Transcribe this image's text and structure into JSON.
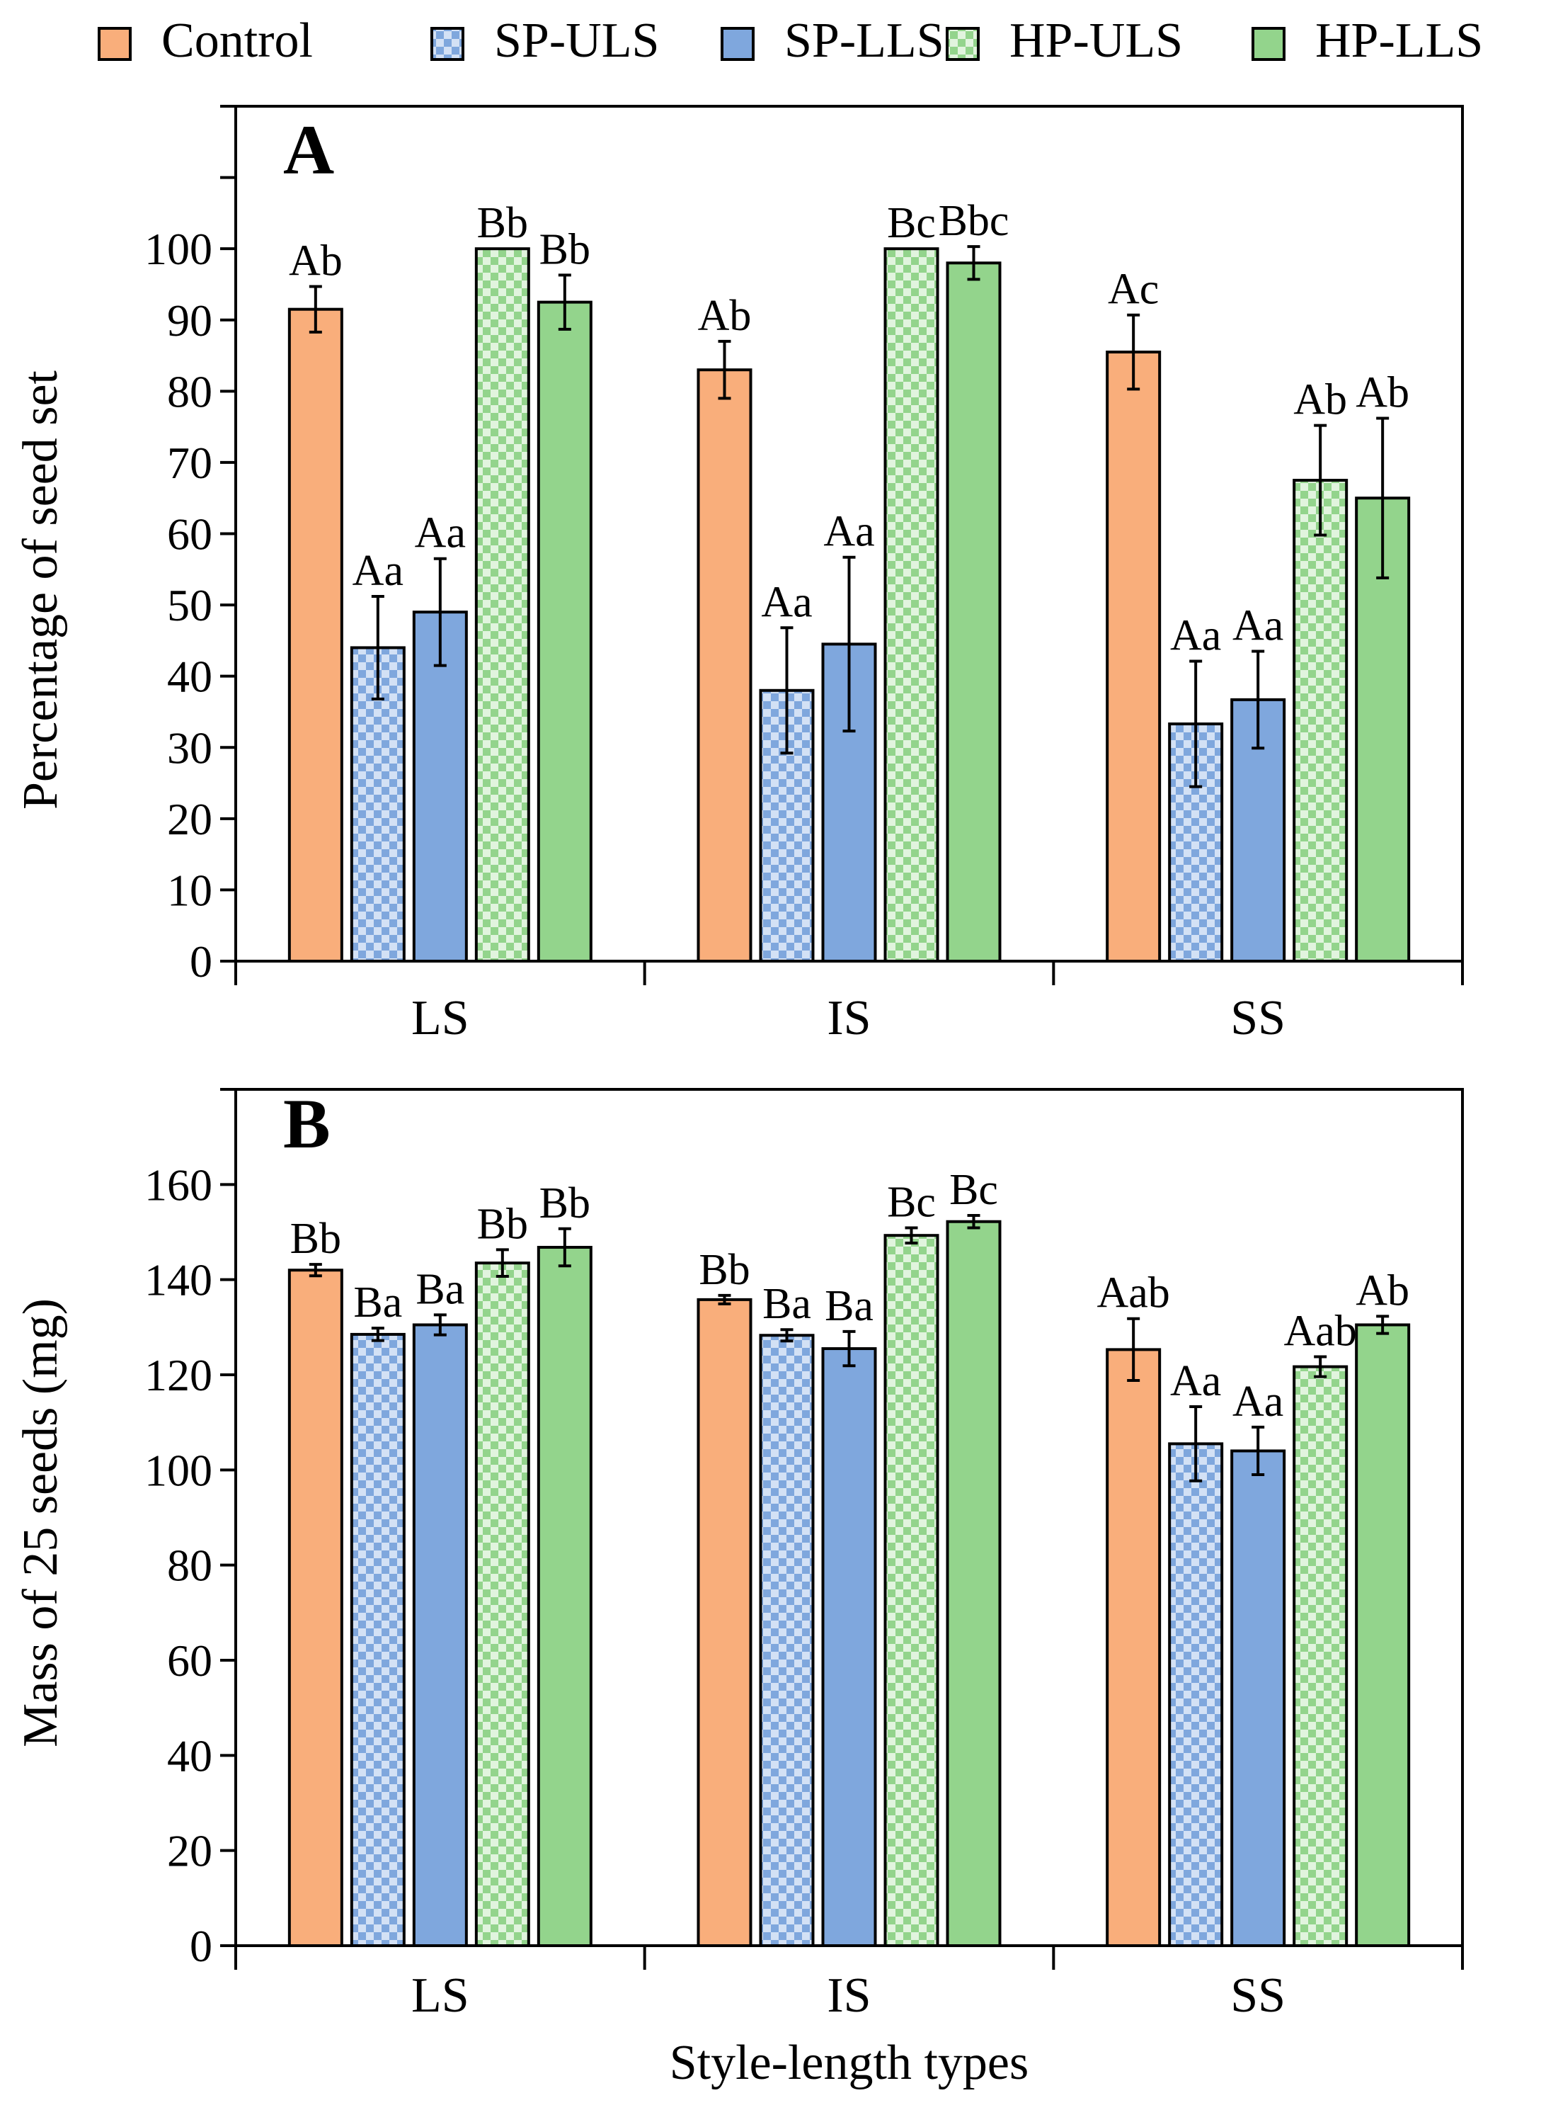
{
  "colors": {
    "control": "#f9ae7b",
    "sp": "#7fa7dd",
    "sp_light": "#d3e1f5",
    "hp": "#93d48c",
    "hp_light": "#e1f4de",
    "axis": "#000000"
  },
  "legend": [
    {
      "name": "Control",
      "color": "control",
      "pattern": "solid"
    },
    {
      "name": "SP-ULS",
      "color": "sp",
      "pattern": "checker"
    },
    {
      "name": "SP-LLS",
      "color": "sp",
      "pattern": "solid"
    },
    {
      "name": "HP-ULS",
      "color": "hp",
      "pattern": "checker"
    },
    {
      "name": "HP-LLS",
      "color": "hp",
      "pattern": "solid"
    }
  ],
  "chart_data": [
    {
      "type": "bar",
      "panel_label": "A",
      "title": "",
      "xlabel": "",
      "ylabel": "Percentage of seed set",
      "ylim": [
        0,
        120
      ],
      "yticks": [
        0,
        10,
        20,
        30,
        40,
        50,
        60,
        70,
        80,
        90,
        100
      ],
      "ytick_labels": [
        "0",
        "10",
        "20",
        "30",
        "40",
        "50",
        "60",
        "70",
        "80",
        "90",
        "100"
      ],
      "minor_ticks": [
        110,
        120
      ],
      "categories": [
        "LS",
        "IS",
        "SS"
      ],
      "series": [
        {
          "name": "Control",
          "values": [
            91.5,
            83,
            85.5
          ],
          "errors": [
            3.2,
            4,
            5.2
          ],
          "labels": [
            "Ab",
            "Ab",
            "Ac"
          ]
        },
        {
          "name": "SP-ULS",
          "values": [
            44,
            38,
            33.3
          ],
          "errors": [
            7.2,
            8.8,
            8.8
          ],
          "labels": [
            "Aa",
            "Aa",
            "Aa"
          ]
        },
        {
          "name": "SP-LLS",
          "values": [
            49,
            44.5,
            36.7
          ],
          "errors": [
            7.5,
            12.2,
            6.8
          ],
          "labels": [
            "Aa",
            "Aa",
            "Aa"
          ]
        },
        {
          "name": "HP-ULS",
          "values": [
            100,
            100,
            67.5
          ],
          "errors": [
            0,
            0,
            7.7
          ],
          "labels": [
            "Bb",
            "Bc",
            "Ab"
          ]
        },
        {
          "name": "HP-LLS",
          "values": [
            92.5,
            98,
            65
          ],
          "errors": [
            3.8,
            2.3,
            11.2
          ],
          "labels": [
            "Bb",
            "Bbc",
            "Ab"
          ]
        }
      ]
    },
    {
      "type": "bar",
      "panel_label": "B",
      "title": "",
      "xlabel": "Style-length types",
      "ylabel": "Mass of 25 seeds (mg)",
      "ylim": [
        0,
        180
      ],
      "yticks": [
        0,
        20,
        40,
        60,
        80,
        100,
        120,
        140,
        160
      ],
      "ytick_labels": [
        "0",
        "20",
        "40",
        "60",
        "80",
        "100",
        "120",
        "140",
        "160"
      ],
      "minor_ticks": [
        180
      ],
      "categories": [
        "LS",
        "IS",
        "SS"
      ],
      "series": [
        {
          "name": "Control",
          "values": [
            142,
            135.8,
            125.3
          ],
          "errors": [
            1.2,
            0.9,
            6.5
          ],
          "labels": [
            "Bb",
            "Bb",
            "Aab"
          ]
        },
        {
          "name": "SP-ULS",
          "values": [
            128.5,
            128.3,
            105.5
          ],
          "errors": [
            1.3,
            1.2,
            7.8
          ],
          "labels": [
            "Ba",
            "Ba",
            "Aa"
          ]
        },
        {
          "name": "SP-LLS",
          "values": [
            130.5,
            125.5,
            104
          ],
          "errors": [
            2.1,
            3.6,
            5
          ],
          "labels": [
            "Ba",
            "Ba",
            "Aa"
          ]
        },
        {
          "name": "HP-ULS",
          "values": [
            143.5,
            149.3,
            121.7
          ],
          "errors": [
            2.8,
            1.6,
            2.1
          ],
          "labels": [
            "Bb",
            "Bc",
            "Aab"
          ]
        },
        {
          "name": "HP-LLS",
          "values": [
            146.8,
            152.2,
            130.5
          ],
          "errors": [
            3.9,
            1.3,
            1.8
          ],
          "labels": [
            "Bb",
            "Bc",
            "Ab"
          ]
        }
      ]
    }
  ]
}
